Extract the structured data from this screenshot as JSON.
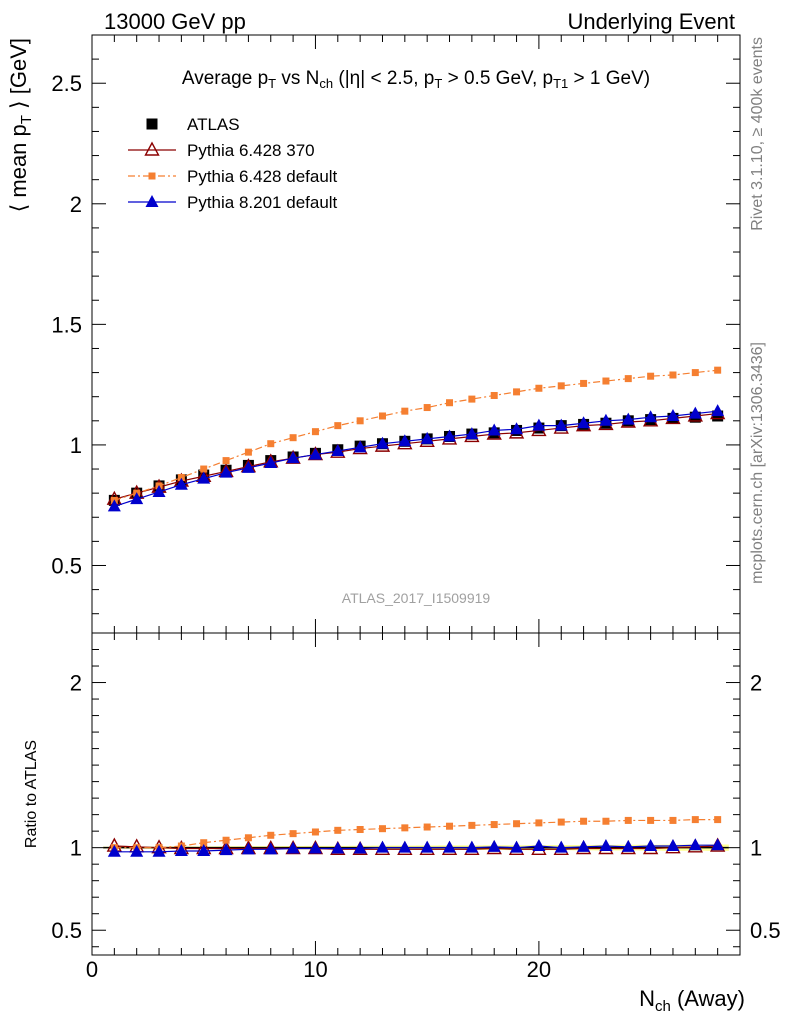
{
  "header": {
    "left": "13000 GeV pp",
    "right": "Underlying Event"
  },
  "side": {
    "rivet": "Rivet 3.1.10, ≥ 400k events",
    "mcplots": "mcplots.cern.ch [arXiv:1306.3436]"
  },
  "chart_data": [
    {
      "type": "line",
      "title": "Average p_T vs N_ch (|η| < 2.5, p_T > 0.5 GeV, p_T1 > 1 GeV)",
      "xlabel": "N_ch (Away)",
      "ylabel": "⟨ mean p_T ⟩ [GeV]",
      "xlim": [
        0,
        29
      ],
      "ylim": [
        0.22,
        2.7
      ],
      "yticks": [
        0.5,
        1,
        1.5,
        2,
        2.5
      ],
      "xticks": [
        0,
        10,
        20
      ],
      "watermark": "ATLAS_2017_I1509919",
      "legend_position": "top-left",
      "x": [
        1,
        2,
        3,
        4,
        5,
        6,
        7,
        8,
        9,
        10,
        11,
        12,
        13,
        14,
        15,
        16,
        17,
        18,
        19,
        20,
        21,
        22,
        23,
        24,
        25,
        26,
        27,
        28
      ],
      "series": [
        {
          "name": "ATLAS",
          "color": "#000000",
          "marker": "square",
          "values": [
            0.77,
            0.8,
            0.83,
            0.855,
            0.875,
            0.895,
            0.915,
            0.935,
            0.95,
            0.965,
            0.98,
            0.995,
            1.005,
            1.015,
            1.025,
            1.035,
            1.045,
            1.05,
            1.06,
            1.07,
            1.08,
            1.085,
            1.09,
            1.1,
            1.105,
            1.11,
            1.115,
            1.12
          ]
        },
        {
          "name": "Pythia 6.428 370",
          "color": "#8b0000",
          "marker": "triangle-open",
          "values": [
            0.775,
            0.8,
            0.825,
            0.85,
            0.87,
            0.89,
            0.91,
            0.93,
            0.945,
            0.96,
            0.97,
            0.985,
            0.995,
            1.005,
            1.015,
            1.025,
            1.035,
            1.045,
            1.05,
            1.06,
            1.07,
            1.08,
            1.085,
            1.095,
            1.1,
            1.11,
            1.12,
            1.13
          ]
        },
        {
          "name": "Pythia 6.428 default",
          "color": "#f57f31",
          "marker": "square-small",
          "dash": "dashdot",
          "values": [
            0.77,
            0.8,
            0.83,
            0.865,
            0.9,
            0.935,
            0.97,
            1.005,
            1.03,
            1.055,
            1.08,
            1.1,
            1.12,
            1.14,
            1.155,
            1.175,
            1.19,
            1.205,
            1.22,
            1.235,
            1.245,
            1.255,
            1.265,
            1.275,
            1.285,
            1.29,
            1.3,
            1.31
          ]
        },
        {
          "name": "Pythia 8.201 default",
          "color": "#0000cc",
          "marker": "triangle",
          "values": [
            0.745,
            0.775,
            0.805,
            0.835,
            0.86,
            0.885,
            0.905,
            0.925,
            0.945,
            0.96,
            0.975,
            0.99,
            1.005,
            1.015,
            1.025,
            1.035,
            1.045,
            1.06,
            1.065,
            1.08,
            1.08,
            1.09,
            1.1,
            1.105,
            1.115,
            1.12,
            1.13,
            1.14
          ]
        }
      ]
    },
    {
      "type": "line",
      "xlabel": "N_ch (Away)",
      "ylabel": "Ratio to ATLAS",
      "xlim": [
        0,
        29
      ],
      "ylim": [
        0.35,
        2.3
      ],
      "yticks": [
        0.5,
        1,
        2
      ],
      "xticks": [
        0,
        10,
        20
      ],
      "x": [
        1,
        2,
        3,
        4,
        5,
        6,
        7,
        8,
        9,
        10,
        11,
        12,
        13,
        14,
        15,
        16,
        17,
        18,
        19,
        20,
        21,
        22,
        23,
        24,
        25,
        26,
        27,
        28
      ],
      "series": [
        {
          "name": "Pythia 6.428 370",
          "color": "#8b0000",
          "marker": "triangle-open",
          "values": [
            1.01,
            1.005,
            1.0,
            0.995,
            0.995,
            0.995,
            0.995,
            0.995,
            0.995,
            0.995,
            0.99,
            0.99,
            0.99,
            0.99,
            0.99,
            0.99,
            0.99,
            0.995,
            0.99,
            0.99,
            0.99,
            0.995,
            0.995,
            0.995,
            0.995,
            1.0,
            1.005,
            1.01
          ]
        },
        {
          "name": "Pythia 6.428 default",
          "color": "#f57f31",
          "marker": "square-small",
          "dash": "dashdot",
          "values": [
            1.0,
            1.0,
            1.0,
            1.01,
            1.03,
            1.045,
            1.06,
            1.075,
            1.085,
            1.095,
            1.105,
            1.11,
            1.115,
            1.12,
            1.125,
            1.13,
            1.135,
            1.14,
            1.145,
            1.15,
            1.155,
            1.16,
            1.16,
            1.165,
            1.165,
            1.165,
            1.17,
            1.17
          ]
        },
        {
          "name": "Pythia 8.201 default",
          "color": "#0000cc",
          "marker": "triangle",
          "values": [
            0.975,
            0.975,
            0.975,
            0.98,
            0.98,
            0.985,
            0.99,
            0.99,
            0.995,
            0.995,
            0.995,
            0.995,
            1.0,
            1.0,
            1.0,
            1.0,
            1.0,
            1.005,
            1.0,
            1.01,
            1.0,
            1.005,
            1.01,
            1.005,
            1.01,
            1.01,
            1.015,
            1.015
          ]
        }
      ]
    }
  ]
}
